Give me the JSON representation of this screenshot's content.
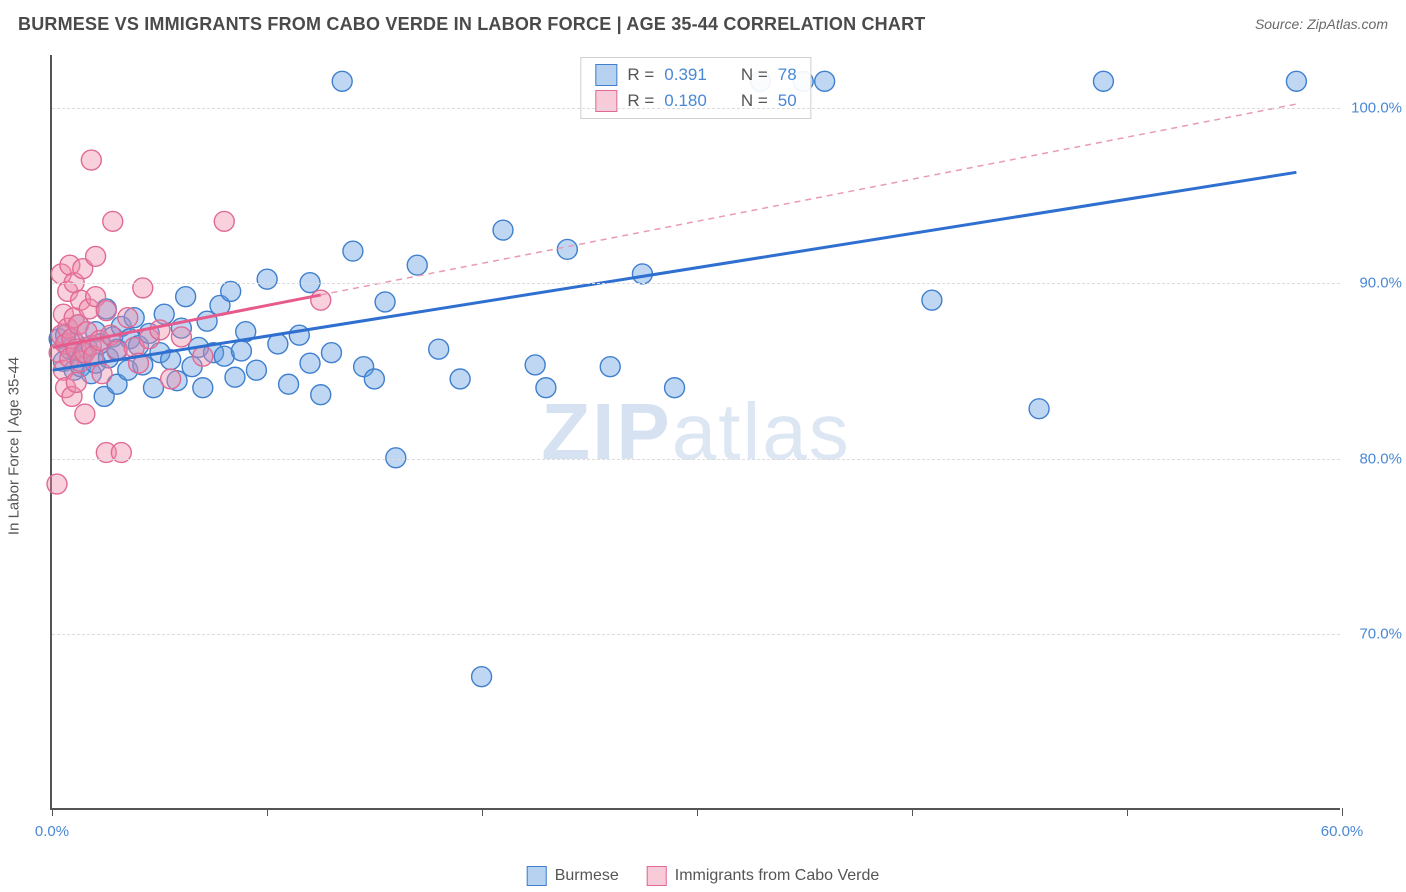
{
  "title": "BURMESE VS IMMIGRANTS FROM CABO VERDE IN LABOR FORCE | AGE 35-44 CORRELATION CHART",
  "source": "Source: ZipAtlas.com",
  "watermark_a": "ZIP",
  "watermark_b": "atlas",
  "ylabel": "In Labor Force | Age 35-44",
  "chart": {
    "type": "scatter-with-regression",
    "background_color": "#ffffff",
    "grid_color": "#dcdcdc",
    "axis_color": "#555555",
    "label_color": "#4a88d6",
    "text_color": "#555555",
    "title_fontsize": 18,
    "label_fontsize": 15,
    "tick_fontsize": 15,
    "xlim": [
      0,
      60
    ],
    "ylim": [
      60,
      103
    ],
    "xticks": [
      0,
      10,
      20,
      30,
      40,
      50,
      60
    ],
    "xtick_labels": [
      "0.0%",
      "",
      "",
      "",
      "",
      "",
      "60.0%"
    ],
    "yticks": [
      70,
      80,
      90,
      100
    ],
    "ytick_labels": [
      "70.0%",
      "80.0%",
      "90.0%",
      "100.0%"
    ],
    "marker_radius": 10,
    "marker_stroke_width": 1.4,
    "series": [
      {
        "key": "burmese",
        "label": "Burmese",
        "fill": "rgba(96,155,224,0.40)",
        "stroke": "#3f7fce",
        "R": "0.391",
        "N": "78",
        "regression": {
          "x1": 0,
          "y1": 85.0,
          "x2": 58,
          "y2": 96.3,
          "color": "#2f6fd0",
          "width": 3,
          "dash": ""
        },
        "extrapolation": null,
        "points": [
          [
            0.3,
            86.8
          ],
          [
            0.5,
            85.5
          ],
          [
            0.6,
            87.0
          ],
          [
            0.8,
            86.2
          ],
          [
            1.0,
            85.0
          ],
          [
            1.0,
            86.6
          ],
          [
            1.2,
            87.6
          ],
          [
            1.3,
            85.2
          ],
          [
            1.4,
            86.0
          ],
          [
            1.6,
            86.3
          ],
          [
            1.8,
            84.8
          ],
          [
            2.0,
            87.2
          ],
          [
            2.0,
            85.4
          ],
          [
            2.2,
            86.5
          ],
          [
            2.4,
            83.5
          ],
          [
            2.5,
            88.5
          ],
          [
            2.6,
            85.7
          ],
          [
            2.8,
            86.9
          ],
          [
            3.0,
            86.2
          ],
          [
            3.0,
            84.2
          ],
          [
            3.2,
            87.5
          ],
          [
            3.5,
            85.0
          ],
          [
            3.6,
            86.8
          ],
          [
            3.8,
            88.0
          ],
          [
            4.0,
            86.4
          ],
          [
            4.2,
            85.3
          ],
          [
            4.5,
            87.1
          ],
          [
            4.7,
            84.0
          ],
          [
            5.0,
            86.0
          ],
          [
            5.2,
            88.2
          ],
          [
            5.5,
            85.6
          ],
          [
            5.8,
            84.4
          ],
          [
            6.0,
            87.4
          ],
          [
            6.2,
            89.2
          ],
          [
            6.5,
            85.2
          ],
          [
            6.8,
            86.3
          ],
          [
            7.0,
            84.0
          ],
          [
            7.2,
            87.8
          ],
          [
            7.5,
            86.0
          ],
          [
            7.8,
            88.7
          ],
          [
            8.0,
            85.8
          ],
          [
            8.3,
            89.5
          ],
          [
            8.5,
            84.6
          ],
          [
            8.8,
            86.1
          ],
          [
            9.0,
            87.2
          ],
          [
            9.5,
            85.0
          ],
          [
            10.0,
            90.2
          ],
          [
            10.5,
            86.5
          ],
          [
            11.0,
            84.2
          ],
          [
            11.5,
            87.0
          ],
          [
            12.0,
            85.4
          ],
          [
            12.0,
            90.0
          ],
          [
            12.5,
            83.6
          ],
          [
            13.0,
            86.0
          ],
          [
            13.5,
            101.5
          ],
          [
            14.0,
            91.8
          ],
          [
            14.5,
            85.2
          ],
          [
            15.0,
            84.5
          ],
          [
            15.5,
            88.9
          ],
          [
            16.0,
            80.0
          ],
          [
            17.0,
            91.0
          ],
          [
            18.0,
            86.2
          ],
          [
            19.0,
            84.5
          ],
          [
            20.0,
            67.5
          ],
          [
            21.0,
            93.0
          ],
          [
            22.5,
            85.3
          ],
          [
            23.0,
            84.0
          ],
          [
            24.0,
            91.9
          ],
          [
            26.0,
            85.2
          ],
          [
            27.5,
            90.5
          ],
          [
            29.0,
            84.0
          ],
          [
            33.0,
            101.5
          ],
          [
            35.0,
            101.5
          ],
          [
            36.0,
            101.5
          ],
          [
            41.0,
            89.0
          ],
          [
            46.0,
            82.8
          ],
          [
            49.0,
            101.5
          ],
          [
            58.0,
            101.5
          ]
        ]
      },
      {
        "key": "cabo_verde",
        "label": "Immigrants from Cabo Verde",
        "fill": "rgba(240,140,170,0.40)",
        "stroke": "#e06a95",
        "R": "0.180",
        "N": "50",
        "regression": {
          "x1": 0,
          "y1": 86.3,
          "x2": 12.5,
          "y2": 89.3,
          "color": "#e65a8c",
          "width": 3,
          "dash": ""
        },
        "extrapolation": {
          "x1": 12.5,
          "y1": 89.3,
          "x2": 58,
          "y2": 100.2,
          "color": "#e99ab5",
          "width": 1.5,
          "dash": "6,5"
        },
        "points": [
          [
            0.2,
            78.5
          ],
          [
            0.3,
            86.0
          ],
          [
            0.4,
            90.5
          ],
          [
            0.4,
            87.0
          ],
          [
            0.5,
            85.0
          ],
          [
            0.5,
            88.2
          ],
          [
            0.6,
            86.5
          ],
          [
            0.6,
            84.0
          ],
          [
            0.7,
            89.5
          ],
          [
            0.7,
            87.4
          ],
          [
            0.8,
            85.7
          ],
          [
            0.8,
            91.0
          ],
          [
            0.9,
            86.8
          ],
          [
            0.9,
            83.5
          ],
          [
            1.0,
            88.0
          ],
          [
            1.0,
            90.0
          ],
          [
            1.1,
            86.2
          ],
          [
            1.1,
            84.3
          ],
          [
            1.2,
            87.6
          ],
          [
            1.3,
            89.0
          ],
          [
            1.3,
            85.5
          ],
          [
            1.4,
            90.8
          ],
          [
            1.5,
            86.0
          ],
          [
            1.5,
            82.5
          ],
          [
            1.6,
            87.2
          ],
          [
            1.7,
            88.5
          ],
          [
            1.8,
            86.4
          ],
          [
            1.8,
            97.0
          ],
          [
            1.9,
            85.8
          ],
          [
            2.0,
            89.2
          ],
          [
            2.0,
            91.5
          ],
          [
            2.2,
            86.7
          ],
          [
            2.3,
            84.8
          ],
          [
            2.5,
            80.3
          ],
          [
            2.5,
            88.4
          ],
          [
            2.7,
            87.0
          ],
          [
            2.8,
            93.5
          ],
          [
            3.0,
            86.1
          ],
          [
            3.2,
            80.3
          ],
          [
            3.5,
            88.0
          ],
          [
            3.8,
            86.3
          ],
          [
            4.0,
            85.4
          ],
          [
            4.2,
            89.7
          ],
          [
            4.5,
            86.8
          ],
          [
            5.0,
            87.3
          ],
          [
            5.5,
            84.5
          ],
          [
            6.0,
            86.9
          ],
          [
            7.0,
            85.8
          ],
          [
            8.0,
            93.5
          ],
          [
            12.5,
            89.0
          ]
        ]
      }
    ],
    "legend_stats_labels": {
      "R": "R =",
      "N": "N ="
    },
    "legend_position": "top-center",
    "bottom_legend_position": "bottom-center"
  }
}
